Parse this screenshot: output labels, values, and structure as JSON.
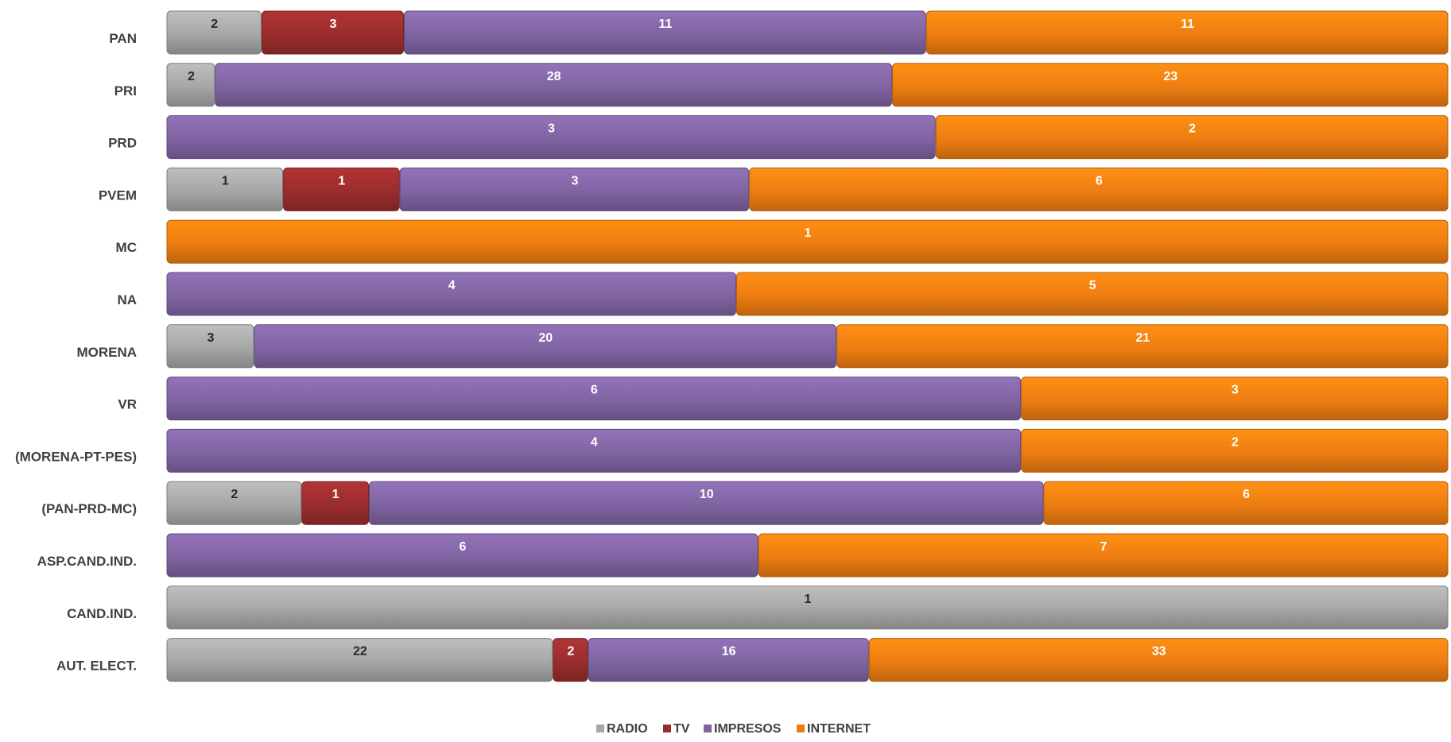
{
  "chart_data": {
    "type": "bar",
    "orientation": "horizontal",
    "stacked": "percent",
    "categories": [
      "PAN",
      "PRI",
      "PRD",
      "PVEM",
      "MC",
      "NA",
      "MORENA",
      "VR",
      "(MORENA-PT-PES)",
      "(PAN-PRD-MC)",
      "ASP.CAND.IND.",
      "CAND.IND.",
      "AUT. ELECT."
    ],
    "series": [
      {
        "name": "RADIO",
        "color": "#a6a6a6",
        "label_color": "#262626",
        "values": [
          2,
          2,
          0,
          1,
          0,
          0,
          3,
          0,
          0,
          2,
          0,
          1,
          22
        ]
      },
      {
        "name": "TV",
        "color": "#9b2d2d",
        "label_color": "#ffffff",
        "values": [
          3,
          0,
          0,
          1,
          0,
          0,
          0,
          0,
          0,
          1,
          0,
          0,
          2
        ]
      },
      {
        "name": "IMPRESOS",
        "color": "#8064a2",
        "label_color": "#ffffff",
        "values": [
          11,
          28,
          3,
          3,
          0,
          4,
          20,
          6,
          4,
          10,
          6,
          0,
          16
        ]
      },
      {
        "name": "INTERNET",
        "color": "#ed7d11",
        "label_color": "#ffffff",
        "values": [
          11,
          23,
          2,
          6,
          1,
          5,
          21,
          3,
          2,
          6,
          7,
          0,
          33
        ]
      }
    ],
    "legend_position": "bottom",
    "grid": false
  }
}
